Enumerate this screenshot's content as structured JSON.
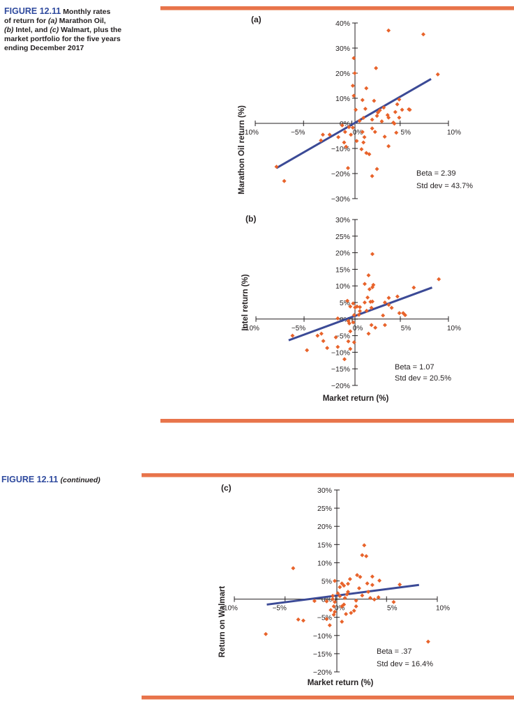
{
  "figure": {
    "label": "FIGURE 12.11",
    "caption_lines": [
      "Monthly rates",
      "of return for",
      "(a)",
      "Marathon Oil,",
      "(b)",
      "Intel, and",
      "(c)",
      "Walmart, plus the",
      "market portfolio for the five years",
      "ending December 2017"
    ],
    "continued_label": "FIGURE 12.11",
    "continued_text": "(continued)"
  },
  "colors": {
    "accent": "#e8744b",
    "marker": "#e8632b",
    "regression": "#3b4a96",
    "title": "#2f4a9e"
  },
  "chart_data": [
    {
      "panel": "(a)",
      "type": "scatter",
      "ylabel": "Marathon Oil return (%)",
      "xlabel": "",
      "xlim": [
        -10,
        10
      ],
      "ylim": [
        -30,
        40
      ],
      "x_ticks": [
        -10,
        -5,
        0,
        5,
        10
      ],
      "x_tick_labels": [
        "−10%",
        "−5%",
        "0%",
        "5%",
        "10%"
      ],
      "y_ticks": [
        40,
        30,
        20,
        10,
        0,
        -10,
        -20,
        -30
      ],
      "y_tick_labels": [
        "40%",
        "30%",
        "20%",
        "10%",
        "0%",
        "−10%",
        "−20%",
        "−30%"
      ],
      "beta_text": "Beta = 2.39",
      "std_text": "Std dev = 43.7%",
      "regression": {
        "x": [
          -7.8,
          8.2
        ],
        "y": [
          -17.8,
          17.7
        ]
      },
      "points": [
        [
          3.8,
          37
        ],
        [
          7.4,
          35.5
        ],
        [
          0.2,
          26
        ],
        [
          0.3,
          20
        ],
        [
          2.5,
          22
        ],
        [
          8.9,
          19.5
        ],
        [
          0.1,
          15
        ],
        [
          1.5,
          14
        ],
        [
          0.2,
          11
        ],
        [
          1.1,
          9.3
        ],
        [
          2.3,
          9
        ],
        [
          4.9,
          9.5
        ],
        [
          3.3,
          6.3
        ],
        [
          4.7,
          7.6
        ],
        [
          0.4,
          5.4
        ],
        [
          1.4,
          5.8
        ],
        [
          2.7,
          4.3
        ],
        [
          2.9,
          5.2
        ],
        [
          4.5,
          4.5
        ],
        [
          5.2,
          5.4
        ],
        [
          5.9,
          5.6
        ],
        [
          6.0,
          5.4
        ],
        [
          2.6,
          3.0
        ],
        [
          3.7,
          3.3
        ],
        [
          3.8,
          2.3
        ],
        [
          4.9,
          2.3
        ],
        [
          1.2,
          2.2
        ],
        [
          2.1,
          1.5
        ],
        [
          0.8,
          1.0
        ],
        [
          3.1,
          0.8
        ],
        [
          4.3,
          0.3
        ],
        [
          4.4,
          -0.1
        ],
        [
          -1.0,
          -0.8
        ],
        [
          -0.3,
          -1.5
        ],
        [
          0.1,
          -1.7
        ],
        [
          2.1,
          -2.0
        ],
        [
          -0.7,
          -3.4
        ],
        [
          1.1,
          -3.4
        ],
        [
          2.4,
          -3.4
        ],
        [
          4.6,
          -3.7
        ],
        [
          -3.0,
          -4.5
        ],
        [
          -2.3,
          -4.5
        ],
        [
          -0.1,
          -4.5
        ],
        [
          -1.4,
          -5.5
        ],
        [
          1.3,
          -5.5
        ],
        [
          3.4,
          -5.3
        ],
        [
          -3.2,
          -6.8
        ],
        [
          0.5,
          -7.0
        ],
        [
          -0.8,
          -7.6
        ],
        [
          1.2,
          -7.6
        ],
        [
          -0.6,
          -9.3
        ],
        [
          3.8,
          -9.1
        ],
        [
          1.0,
          -10.3
        ],
        [
          1.5,
          -11.8
        ],
        [
          1.8,
          -12.3
        ],
        [
          -7.8,
          -17.3
        ],
        [
          -0.4,
          -17.8
        ],
        [
          2.6,
          -18.2
        ],
        [
          2.1,
          -21.0
        ],
        [
          -7.0,
          -23.0
        ]
      ]
    },
    {
      "panel": "(b)",
      "type": "scatter",
      "ylabel": "Intel return (%)",
      "xlabel": "Market return (%)",
      "xlim": [
        -10,
        10
      ],
      "ylim": [
        -20,
        30
      ],
      "x_ticks": [
        -10,
        -5,
        0,
        5,
        10
      ],
      "x_tick_labels": [
        "−10%",
        "−5%",
        "0%",
        "5%",
        "10%"
      ],
      "y_ticks": [
        30,
        25,
        20,
        15,
        10,
        5,
        0,
        -5,
        -10,
        -15,
        -20
      ],
      "y_tick_labels": [
        "30%",
        "25%",
        "20%",
        "15%",
        "10%",
        "5%",
        "0%",
        "−5%",
        "−10%",
        "−15%",
        "−20%"
      ],
      "beta_text": "Beta = 1.07",
      "std_text": "Std dev = 20.5%",
      "regression": {
        "x": [
          -6.6,
          8.3
        ],
        "y": [
          -6.4,
          9.5
        ]
      },
      "points": [
        [
          2.1,
          19.6
        ],
        [
          1.7,
          13.2
        ],
        [
          9.0,
          12.0
        ],
        [
          1.3,
          10.6
        ],
        [
          2.2,
          10.3
        ],
        [
          1.8,
          9.0
        ],
        [
          2.1,
          9.6
        ],
        [
          6.4,
          9.5
        ],
        [
          -0.5,
          5.5
        ],
        [
          1.6,
          6.5
        ],
        [
          3.8,
          6.4
        ],
        [
          4.7,
          6.8
        ],
        [
          0.1,
          4.7
        ],
        [
          1.3,
          5.0
        ],
        [
          1.9,
          5.2
        ],
        [
          2.1,
          5.3
        ],
        [
          3.4,
          5.0
        ],
        [
          3.8,
          4.3
        ],
        [
          -0.2,
          3.8
        ],
        [
          0.3,
          3.5
        ],
        [
          0.5,
          3.8
        ],
        [
          0.8,
          3.6
        ],
        [
          0.8,
          2.4
        ],
        [
          1.5,
          2.5
        ],
        [
          2.0,
          3.4
        ],
        [
          4.1,
          3.4
        ],
        [
          4.9,
          1.8
        ],
        [
          5.3,
          1.8
        ],
        [
          5.5,
          1.2
        ],
        [
          0.2,
          1.2
        ],
        [
          0.7,
          1.3
        ],
        [
          3.2,
          1.1
        ],
        [
          -1.5,
          0.2
        ],
        [
          -0.4,
          -0.6
        ],
        [
          0.1,
          -1.0
        ],
        [
          -0.3,
          -1.3
        ],
        [
          2.0,
          -1.8
        ],
        [
          2.4,
          -2.6
        ],
        [
          3.4,
          -1.8
        ],
        [
          -0.2,
          -3.7
        ],
        [
          1.7,
          -4.4
        ],
        [
          -3.2,
          -4.4
        ],
        [
          -3.6,
          -5.0
        ],
        [
          -1.7,
          -5.5
        ],
        [
          -3.0,
          -6.6
        ],
        [
          -0.4,
          -6.7
        ],
        [
          0.2,
          -7.0
        ],
        [
          -2.6,
          -8.7
        ],
        [
          -0.2,
          -9.0
        ],
        [
          -1.5,
          -8.4
        ],
        [
          -4.7,
          -9.4
        ],
        [
          -0.8,
          -12.1
        ],
        [
          -6.2,
          -5.0
        ]
      ]
    },
    {
      "panel": "(c)",
      "type": "scatter",
      "ylabel": "Return on Walmart",
      "xlabel": "Market return (%)",
      "xlim": [
        -10,
        10
      ],
      "ylim": [
        -20,
        30
      ],
      "x_ticks": [
        -10,
        -5,
        0,
        5,
        10
      ],
      "x_tick_labels": [
        "−10%",
        "−5%",
        "0%",
        "5%",
        "10%"
      ],
      "y_ticks": [
        30,
        25,
        20,
        15,
        10,
        5,
        0,
        -5,
        -10,
        -15,
        -20
      ],
      "y_tick_labels": [
        "30%",
        "25%",
        "20%",
        "15%",
        "10%",
        "5%",
        "0%",
        "−5%",
        "−10%",
        "−15%",
        "−20%"
      ],
      "beta_text": "Beta = .37",
      "std_text": "Std dev = 16.4%",
      "regression": {
        "x": [
          -6.8,
          8.2
        ],
        "y": [
          -1.5,
          3.9
        ]
      },
      "points": [
        [
          2.8,
          14.8
        ],
        [
          2.6,
          12.1
        ],
        [
          3.0,
          11.8
        ],
        [
          -4.2,
          8.5
        ],
        [
          2.1,
          6.6
        ],
        [
          2.4,
          6.1
        ],
        [
          3.6,
          6.2
        ],
        [
          -0.1,
          5.0
        ],
        [
          1.4,
          5.5
        ],
        [
          4.3,
          5.1
        ],
        [
          3.1,
          4.3
        ],
        [
          1.2,
          4.2
        ],
        [
          0.6,
          4.3
        ],
        [
          0.8,
          3.7
        ],
        [
          3.6,
          3.9
        ],
        [
          0.4,
          3.3
        ],
        [
          2.3,
          3.0
        ],
        [
          6.3,
          4.0
        ],
        [
          3.2,
          2.0
        ],
        [
          0.2,
          1.6
        ],
        [
          1.2,
          2.0
        ],
        [
          1.1,
          1.3
        ],
        [
          2.6,
          1.0
        ],
        [
          -0.3,
          0.9
        ],
        [
          0.4,
          0.8
        ],
        [
          -0.3,
          0.0
        ],
        [
          0.9,
          0.3
        ],
        [
          3.4,
          0.3
        ],
        [
          4.2,
          0.5
        ],
        [
          -2.1,
          -0.5
        ],
        [
          -0.9,
          -0.6
        ],
        [
          -0.1,
          -0.8
        ],
        [
          2.0,
          -0.4
        ],
        [
          0.8,
          -1.5
        ],
        [
          3.8,
          -0.1
        ],
        [
          -0.2,
          -2.0
        ],
        [
          0.6,
          -2.0
        ],
        [
          -0.5,
          -3.0
        ],
        [
          2.0,
          -2.0
        ],
        [
          1.8,
          -3.2
        ],
        [
          1.5,
          -3.8
        ],
        [
          5.7,
          -0.8
        ],
        [
          -0.1,
          -3.5
        ],
        [
          -0.2,
          -4.3
        ],
        [
          1.0,
          -4.1
        ],
        [
          -0.9,
          -5.5
        ],
        [
          0.6,
          -6.2
        ],
        [
          -3.7,
          -5.6
        ],
        [
          -3.2,
          -5.9
        ],
        [
          -0.6,
          -7.2
        ],
        [
          -6.9,
          -9.6
        ],
        [
          9.1,
          -11.7
        ]
      ]
    }
  ]
}
